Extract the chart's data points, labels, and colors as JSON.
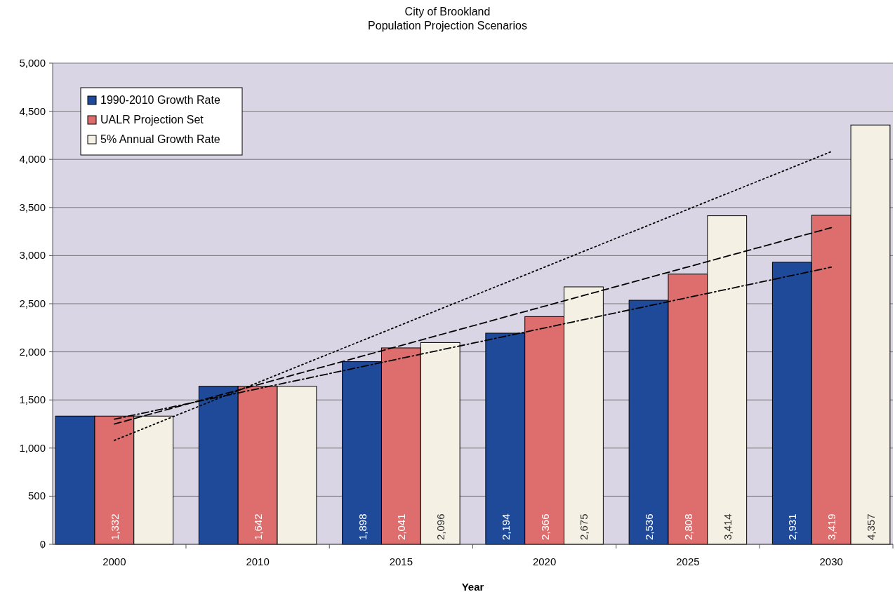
{
  "chart_data": {
    "type": "bar",
    "title": "City of Brookland",
    "subtitle": "Population Projection Scenarios",
    "xlabel": "Year",
    "categories": [
      "2000",
      "2010",
      "2015",
      "2020",
      "2025",
      "2030"
    ],
    "series": [
      {
        "name": "1990-2010 Growth Rate",
        "color": "#1f4a9a",
        "values": [
          1332,
          1642,
          1898,
          2194,
          2536,
          2931
        ],
        "value_labels": [
          null,
          null,
          "1,898",
          "2,194",
          "2,536",
          "2,931"
        ]
      },
      {
        "name": "UALR Projection Set",
        "color": "#de6e6e",
        "values": [
          1332,
          1642,
          2041,
          2366,
          2808,
          3419
        ],
        "value_labels": [
          "1,332",
          "1,642",
          "2,041",
          "2,366",
          "2,808",
          "3,419"
        ]
      },
      {
        "name": "5% Annual Growth Rate",
        "color": "#f4f1e4",
        "values": [
          1332,
          1642,
          2096,
          2675,
          3414,
          4357
        ],
        "value_labels": [
          null,
          null,
          "2,096",
          "2,675",
          "3,414",
          "4,357"
        ]
      },
      {
        "type": "line",
        "color": "#000000",
        "line_style": "dotted",
        "values": [
          1080,
          1680,
          2280,
          2880,
          3480,
          4080
        ]
      },
      {
        "type": "line",
        "color": "#000000",
        "line_style": "dashed",
        "values": [
          1250,
          1658,
          2066,
          2474,
          2882,
          3290
        ]
      },
      {
        "type": "line",
        "color": "#000000",
        "line_style": "dashdot",
        "values": [
          1300,
          1616,
          1932,
          2248,
          2564,
          2880
        ]
      }
    ],
    "ylim": [
      0,
      5000
    ],
    "yticks": [
      {
        "value": 0,
        "label": "0"
      },
      {
        "value": 500,
        "label": "500"
      },
      {
        "value": 1000,
        "label": "1,000"
      },
      {
        "value": 1500,
        "label": "1,500"
      },
      {
        "value": 2000,
        "label": "2,000"
      },
      {
        "value": 2500,
        "label": "2,500"
      },
      {
        "value": 3000,
        "label": "3,000"
      },
      {
        "value": 3500,
        "label": "3,500"
      },
      {
        "value": 4000,
        "label": "4,000"
      },
      {
        "value": 4500,
        "label": "4,500"
      },
      {
        "value": 5000,
        "label": "5,000"
      }
    ],
    "grid": "y",
    "legend": "top left",
    "marker": "none"
  }
}
